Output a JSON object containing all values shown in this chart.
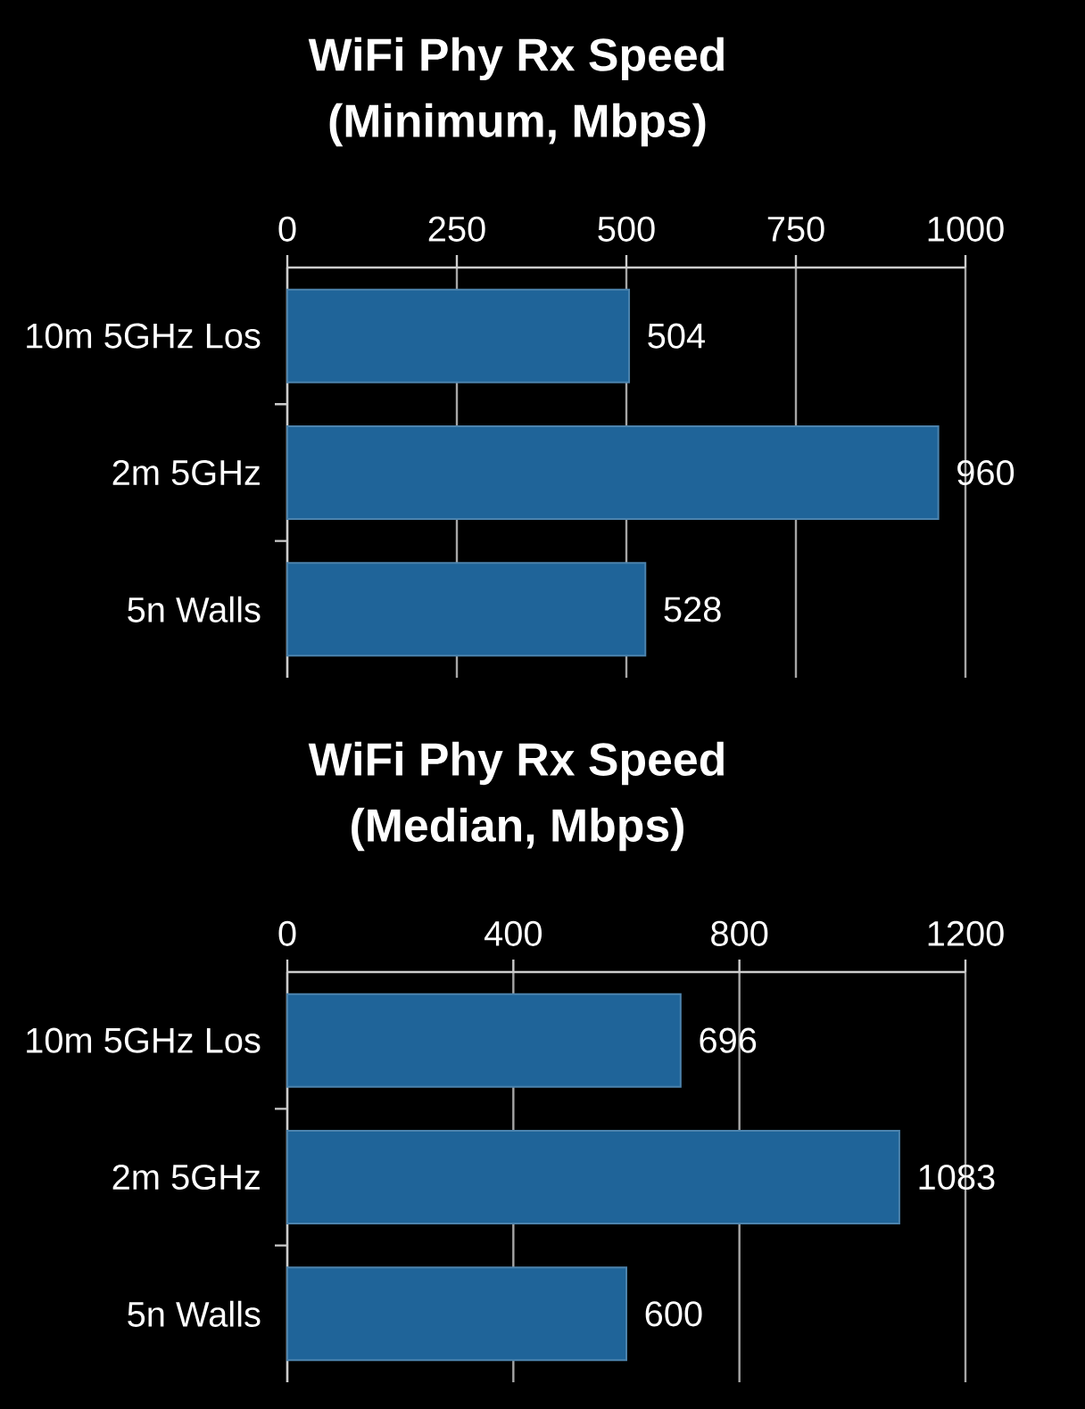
{
  "chart_data": [
    {
      "type": "bar",
      "orientation": "horizontal",
      "title": "WiFi Phy Rx Speed",
      "subtitle": "(Minimum, Mbps)",
      "categories": [
        "10m 5GHz Los",
        "2m 5GHz",
        "5n Walls"
      ],
      "values": [
        504,
        960,
        528
      ],
      "color": "#1f6499",
      "xlim": [
        0,
        1000
      ],
      "xticks": [
        0,
        250,
        500,
        750,
        1000
      ],
      "grid": "x",
      "data_labels": true
    },
    {
      "type": "bar",
      "orientation": "horizontal",
      "title": "WiFi Phy Rx Speed",
      "subtitle": "(Median, Mbps)",
      "categories": [
        "10m 5GHz Los",
        "2m 5GHz",
        "5n Walls"
      ],
      "values": [
        696,
        1083,
        600
      ],
      "color": "#1f6499",
      "xlim": [
        0,
        1200
      ],
      "xticks": [
        0,
        400,
        800,
        1200
      ],
      "grid": "x",
      "data_labels": true
    }
  ]
}
